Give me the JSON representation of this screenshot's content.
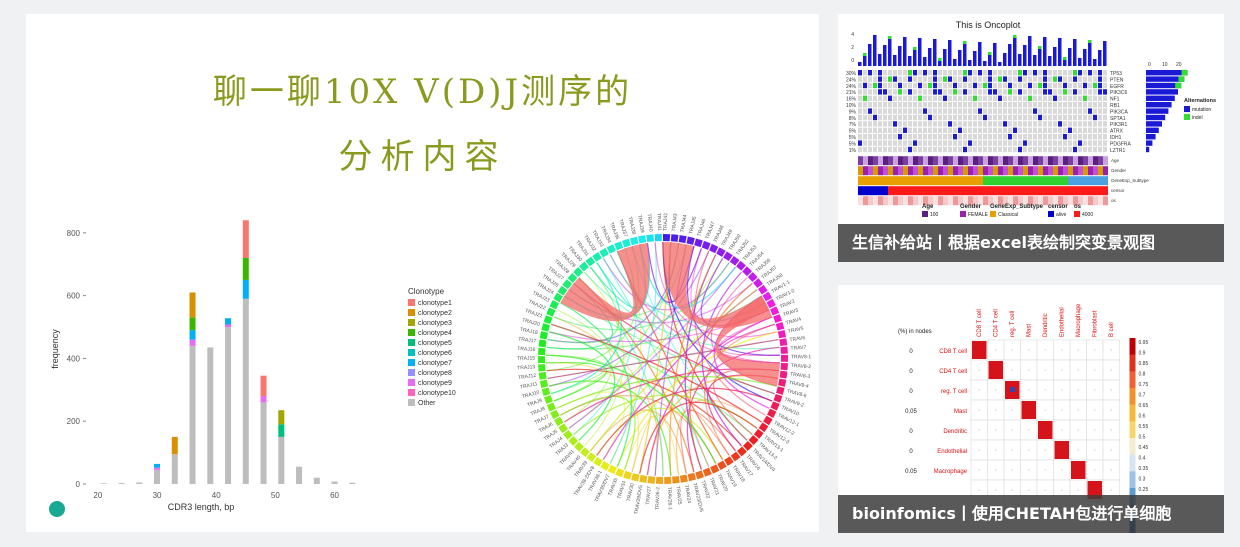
{
  "main": {
    "title_line1": "聊一聊10X V(D)J测序的",
    "title_line2": "分析内容"
  },
  "chart_data": {
    "type": "bar",
    "xlabel": "CDR3 length, bp",
    "ylabel": "frequency",
    "xlim": [
      18,
      67
    ],
    "ylim": [
      0,
      860
    ],
    "x_ticks": [
      20,
      30,
      40,
      50,
      60
    ],
    "y_ticks": [
      0,
      200,
      400,
      600,
      800
    ],
    "legend_title": "Clonotype",
    "series": [
      {
        "name": "clonotype1",
        "color": "#f8766d"
      },
      {
        "name": "clonotype2",
        "color": "#d89000"
      },
      {
        "name": "clonotype3",
        "color": "#a3a500"
      },
      {
        "name": "clonotype4",
        "color": "#39b600"
      },
      {
        "name": "clonotype5",
        "color": "#00bf7d"
      },
      {
        "name": "clonotype6",
        "color": "#00bfc4"
      },
      {
        "name": "clonotype7",
        "color": "#00b0f6"
      },
      {
        "name": "clonotype8",
        "color": "#9590ff"
      },
      {
        "name": "clonotype9",
        "color": "#e76bf3"
      },
      {
        "name": "clonotype10",
        "color": "#ff62bc"
      },
      {
        "name": "Other",
        "color": "#bdbdbd"
      }
    ],
    "bars": [
      {
        "x": 21,
        "other": 2,
        "stack": []
      },
      {
        "x": 24,
        "other": 3,
        "stack": []
      },
      {
        "x": 27,
        "other": 5,
        "stack": []
      },
      {
        "x": 30,
        "other": 45,
        "stack": [
          {
            "s": 8,
            "v": 7
          },
          {
            "s": 6,
            "v": 12
          }
        ]
      },
      {
        "x": 33,
        "other": 95,
        "stack": [
          {
            "s": 1,
            "v": 55
          }
        ]
      },
      {
        "x": 36,
        "other": 440,
        "stack": [
          {
            "s": 8,
            "v": 20
          },
          {
            "s": 6,
            "v": 30
          },
          {
            "s": 3,
            "v": 40
          },
          {
            "s": 1,
            "v": 80
          }
        ]
      },
      {
        "x": 39,
        "other": 435,
        "stack": []
      },
      {
        "x": 42,
        "other": 500,
        "stack": [
          {
            "s": 8,
            "v": 8
          },
          {
            "s": 6,
            "v": 20
          }
        ]
      },
      {
        "x": 45,
        "other": 590,
        "stack": [
          {
            "s": 6,
            "v": 60
          },
          {
            "s": 3,
            "v": 70
          },
          {
            "s": 0,
            "v": 120
          }
        ]
      },
      {
        "x": 48,
        "other": 260,
        "stack": [
          {
            "s": 8,
            "v": 20
          },
          {
            "s": 0,
            "v": 65
          }
        ]
      },
      {
        "x": 51,
        "other": 150,
        "stack": [
          {
            "s": 4,
            "v": 40
          },
          {
            "s": 2,
            "v": 45
          }
        ]
      },
      {
        "x": 54,
        "other": 55,
        "stack": []
      },
      {
        "x": 57,
        "other": 20,
        "stack": []
      },
      {
        "x": 60,
        "other": 8,
        "stack": []
      },
      {
        "x": 63,
        "other": 4,
        "stack": []
      }
    ]
  },
  "chord": {
    "labels": [
      "TRAJ42",
      "TRAJ43",
      "TRAJ44",
      "TRAJ45",
      "TRAJ46",
      "TRAJ47",
      "TRAJ48",
      "TRAJ49",
      "TRAJ50",
      "TRAJ52",
      "TRAJ53",
      "TRAJ54",
      "TRAJ56",
      "TRAJ57",
      "TRAJ58",
      "TRAV1-1",
      "TRAV1-2",
      "TRAV2",
      "TRAV3",
      "TRAV4",
      "TRAV5",
      "TRAV6",
      "TRAV7",
      "TRAV8-1",
      "TRAV8-2",
      "TRAV8-3",
      "TRAV8-4",
      "TRAV8-6",
      "TRAV9-2",
      "TRAV10",
      "TRAV12-1",
      "TRAV12-2",
      "TRAV12-3",
      "TRAV13-1",
      "TRAV13-2",
      "TRAV14/DV4",
      "TRAV16",
      "TRAV17",
      "TRAV18",
      "TRAV19",
      "TRAV20",
      "TRAV21",
      "TRAV22",
      "TRAV23/DV6",
      "TRAV24",
      "TRAV25",
      "TRAV26-1",
      "TRAV26-2",
      "TRAV27",
      "TRAV29/DV5",
      "TRAV30",
      "TRAV34",
      "TRAV35",
      "TRAV36/DV7",
      "TRAV38-1",
      "TRAV38-2/DV8",
      "TRAV39",
      "TRAV40",
      "TRAV41",
      "TRAJ3",
      "TRAJ4",
      "TRAJ5",
      "TRAJ6",
      "TRAJ7",
      "TRAJ8",
      "TRAJ9",
      "TRAJ10",
      "TRAJ11",
      "TRAJ12",
      "TRAJ13",
      "TRAJ15",
      "TRAJ16",
      "TRAJ17",
      "TRAJ18",
      "TRAJ20",
      "TRAJ21",
      "TRAJ22",
      "TRAJ23",
      "TRAJ24",
      "TRAJ26",
      "TRAJ27",
      "TRAJ28",
      "TRAJ29",
      "TRAJ30",
      "TRAJ31",
      "TRAJ32",
      "TRAJ33",
      "TRAJ34",
      "TRAJ36",
      "TRAJ37",
      "TRAJ38",
      "TRAJ39",
      "TRAJ40",
      "TRAJ41"
    ]
  },
  "oncoplot": {
    "title": "This is Oncoplot",
    "genes": [
      "TP53",
      "PTEN",
      "EGFR",
      "PIK3C6",
      "NF1",
      "RB1",
      "PIK3CA",
      "SPTA1",
      "PIK3R1",
      "ATRX",
      "IDH1",
      "PDGFRA",
      "LZTR1"
    ],
    "percents": [
      "30%",
      "24%",
      "24%",
      "21%",
      "16%",
      "10%",
      "9%",
      "8%",
      "7%",
      "5%",
      "5%",
      "5%",
      "1%"
    ],
    "left_axis": [
      "4",
      "2",
      "0"
    ],
    "top_axis": [
      "0",
      "10",
      "20"
    ],
    "track_labels": [
      "Age",
      "Gender",
      "GeneExp_Subtype",
      "censor",
      "os"
    ],
    "legend_alt_title": "Alternations",
    "legend_alt_items": [
      "mutation",
      "indel"
    ],
    "legend_titles": [
      "Age",
      "Gender",
      "GeneExp_Subtype",
      "censor",
      "os"
    ],
    "legend_values": [
      "100",
      "FEMALE",
      "Classical",
      "alive",
      "4000"
    ],
    "colors": {
      "mutation": "#1a1ad6",
      "indel": "#2fe02f",
      "bg": "#d9d9d9"
    }
  },
  "caption1": "生信补给站丨根据excel表绘制突变景观图",
  "heatmap": {
    "col_labels": [
      "CD8 T cell",
      "CD4 T cell",
      "reg. T cell",
      "Mast",
      "Dendritic",
      "Endothelial",
      "Macrophage",
      "Fibroblast",
      "B cell"
    ],
    "row_labels": [
      "CD8 T cell",
      "CD4 T cell",
      "reg. T cell",
      "Mast",
      "Dendritic",
      "Endothelial",
      "Macrophage"
    ],
    "header": "(%) in nodes",
    "pct": [
      "0",
      "0",
      "0",
      "0.05",
      "0",
      "0",
      "0.05"
    ],
    "scale": [
      "0.95",
      "0.9",
      "0.85",
      "0.8",
      "0.75",
      "0.7",
      "0.65",
      "0.6",
      "0.55",
      "0.5",
      "0.45",
      "0.4",
      "0.35",
      "0.3",
      "0.25"
    ]
  },
  "caption2": "bioinfomics丨使用CHETAH包进行单细胞"
}
